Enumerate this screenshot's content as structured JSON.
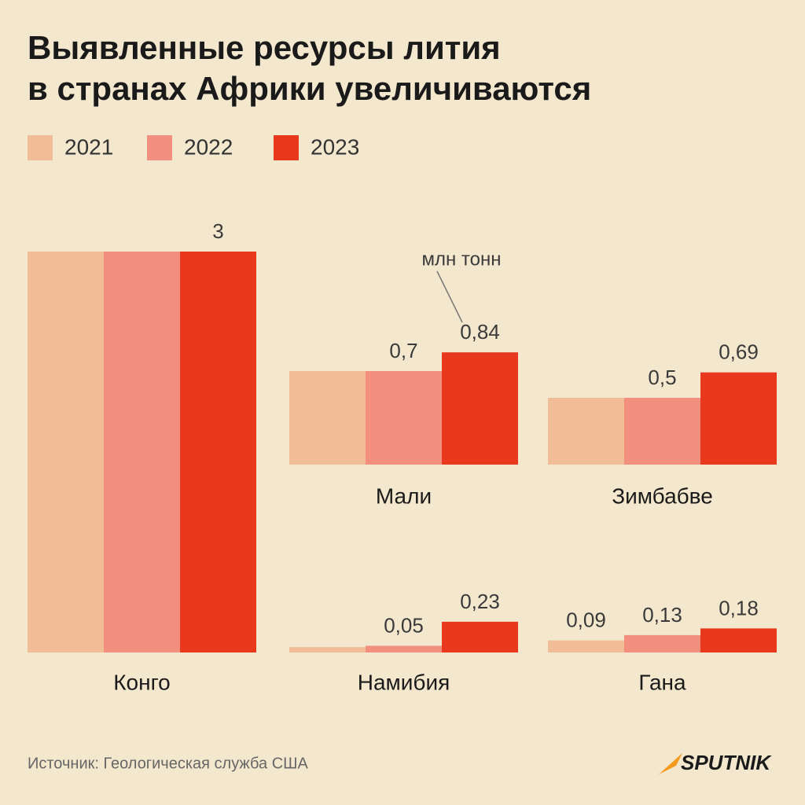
{
  "chart_data": {
    "type": "bar",
    "title": [
      "Выявленные ресурсы лития",
      "в странах Африки увеличиваются"
    ],
    "unit_note": "млн тонн",
    "source": "Источник: Геологическая служба США",
    "brand": "SPUTNIK",
    "categories": [
      "Конго",
      "Мали",
      "Зимбабве",
      "Намибия",
      "Гана"
    ],
    "series": [
      {
        "name": "2021",
        "color": "#f0bd96",
        "values": [
          3,
          0.7,
          0.5,
          0.04,
          0.09
        ],
        "value_labels": [
          null,
          null,
          null,
          null,
          "0,09"
        ]
      },
      {
        "name": "2022",
        "color": "#f28f7e",
        "values": [
          3,
          0.7,
          0.5,
          0.05,
          0.13
        ],
        "value_labels": [
          null,
          "0,7",
          "0,5",
          "0,05",
          "0,13"
        ]
      },
      {
        "name": "2023",
        "color": "#e8391f",
        "values": [
          3,
          0.84,
          0.69,
          0.23,
          0.18
        ],
        "value_labels": [
          "3",
          "0,84",
          "0,69",
          "0,23",
          "0,18"
        ]
      }
    ]
  }
}
